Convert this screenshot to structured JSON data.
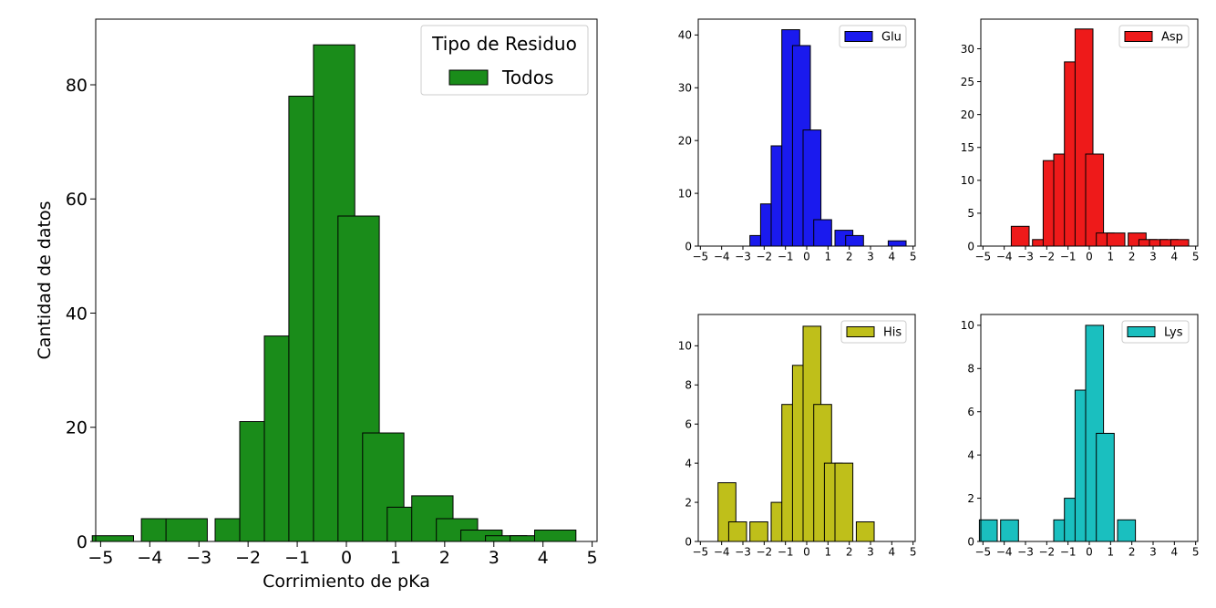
{
  "chart_data": [
    {
      "type": "bar",
      "id": "main",
      "xlabel": "Corrimiento de pKa",
      "ylabel": "Cantidad de datos",
      "xlim": [
        -5.1,
        5.1
      ],
      "ylim": [
        0,
        91.5
      ],
      "xticks": [
        -5,
        -4,
        -3,
        -2,
        -1,
        0,
        1,
        2,
        3,
        4,
        5
      ],
      "yticks": [
        0,
        20,
        40,
        60,
        80
      ],
      "bin_width": 0.5,
      "x": [
        -4.75,
        -4.25,
        -3.75,
        -3.25,
        -2.75,
        -2.25,
        -1.75,
        -1.25,
        -0.75,
        -0.25,
        0.25,
        0.75,
        1.25,
        1.75,
        2.25,
        2.75,
        3.25,
        3.75,
        4.25,
        4.75
      ],
      "values": [
        1,
        0,
        4,
        4,
        0,
        4,
        21,
        36,
        78,
        87,
        57,
        19,
        6,
        8,
        4,
        2,
        1,
        1,
        2,
        0
      ],
      "color": "#1a8c1a",
      "legend": {
        "title": "Tipo de Residuo",
        "entries": [
          {
            "label": "Todos",
            "color": "#1a8c1a"
          }
        ],
        "placement": "top-right"
      },
      "grid": false
    },
    {
      "type": "bar",
      "id": "glu",
      "xlim": [
        -5.1,
        5.1
      ],
      "ylim": [
        0,
        43
      ],
      "xticks": [
        -5,
        -4,
        -3,
        -2,
        -1,
        0,
        1,
        2,
        3,
        4,
        5
      ],
      "yticks": [
        0,
        10,
        20,
        30,
        40
      ],
      "bin_width": 0.5,
      "x": [
        -4.75,
        -4.25,
        -3.75,
        -3.25,
        -2.75,
        -2.25,
        -1.75,
        -1.25,
        -0.75,
        -0.25,
        0.25,
        0.75,
        1.25,
        1.75,
        2.25,
        2.75,
        3.25,
        3.75,
        4.25,
        4.75
      ],
      "values": [
        0,
        0,
        0,
        0,
        0,
        2,
        8,
        19,
        41,
        38,
        22,
        5,
        0,
        3,
        2,
        0,
        0,
        0,
        1,
        0
      ],
      "color": "#1a1aee",
      "legend": {
        "entries": [
          {
            "label": "Glu",
            "color": "#1a1aee"
          }
        ],
        "placement": "top-right"
      },
      "grid": false
    },
    {
      "type": "bar",
      "id": "asp",
      "xlim": [
        -5.1,
        5.1
      ],
      "ylim": [
        0,
        34.5
      ],
      "xticks": [
        -5,
        -4,
        -3,
        -2,
        -1,
        0,
        1,
        2,
        3,
        4,
        5
      ],
      "yticks": [
        0,
        5,
        10,
        15,
        20,
        25,
        30
      ],
      "bin_width": 0.5,
      "x": [
        -4.75,
        -4.25,
        -3.75,
        -3.25,
        -2.75,
        -2.25,
        -1.75,
        -1.25,
        -0.75,
        -0.25,
        0.25,
        0.75,
        1.25,
        1.75,
        2.25,
        2.75,
        3.25,
        3.75,
        4.25,
        4.75
      ],
      "values": [
        0,
        0,
        0,
        3,
        0,
        1,
        13,
        14,
        28,
        33,
        14,
        2,
        2,
        0,
        2,
        1,
        1,
        1,
        1,
        0
      ],
      "color": "#ee1a1a",
      "legend": {
        "entries": [
          {
            "label": "Asp",
            "color": "#ee1a1a"
          }
        ],
        "placement": "top-right"
      },
      "grid": false
    },
    {
      "type": "bar",
      "id": "his",
      "xlim": [
        -5.1,
        5.1
      ],
      "ylim": [
        0,
        11.6
      ],
      "xticks": [
        -5,
        -4,
        -3,
        -2,
        -1,
        0,
        1,
        2,
        3,
        4,
        5
      ],
      "yticks": [
        0,
        2,
        4,
        6,
        8,
        10
      ],
      "bin_width": 0.5,
      "x": [
        -4.75,
        -4.25,
        -3.75,
        -3.25,
        -2.75,
        -2.25,
        -1.75,
        -1.25,
        -0.75,
        -0.25,
        0.25,
        0.75,
        1.25,
        1.75,
        2.25,
        2.75,
        3.25,
        3.75,
        4.25,
        4.75
      ],
      "values": [
        0,
        0,
        3,
        1,
        0,
        1,
        0,
        2,
        7,
        9,
        11,
        7,
        4,
        4,
        0,
        1,
        0,
        0,
        0,
        0
      ],
      "color": "#bfbf1a",
      "legend": {
        "entries": [
          {
            "label": "His",
            "color": "#bfbf1a"
          }
        ],
        "placement": "top-right"
      },
      "grid": false
    },
    {
      "type": "bar",
      "id": "lys",
      "xlim": [
        -5.1,
        5.1
      ],
      "ylim": [
        0,
        10.5
      ],
      "xticks": [
        -5,
        -4,
        -3,
        -2,
        -1,
        0,
        1,
        2,
        3,
        4,
        5
      ],
      "yticks": [
        0,
        2,
        4,
        6,
        8,
        10
      ],
      "bin_width": 0.5,
      "x": [
        -4.75,
        -4.25,
        -3.75,
        -3.25,
        -2.75,
        -2.25,
        -1.75,
        -1.25,
        -0.75,
        -0.25,
        0.25,
        0.75,
        1.25,
        1.75,
        2.25,
        2.75,
        3.25,
        3.75,
        4.25,
        4.75
      ],
      "values": [
        1,
        0,
        1,
        0,
        0,
        0,
        0,
        1,
        2,
        7,
        10,
        5,
        0,
        1,
        0,
        0,
        0,
        0,
        0,
        0
      ],
      "color": "#1abfbf",
      "legend": {
        "entries": [
          {
            "label": "Lys",
            "color": "#1abfbf"
          }
        ],
        "placement": "top-right"
      },
      "grid": false
    }
  ]
}
